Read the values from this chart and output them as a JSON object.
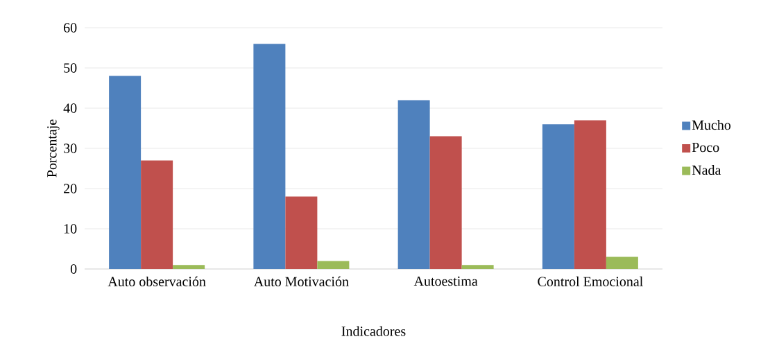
{
  "chart_data": {
    "type": "bar",
    "xlabel": "Indicadores",
    "ylabel": "Porcentaje",
    "categories": [
      "Auto observación",
      "Auto Motivación",
      "Autoestima",
      "Control Emocional"
    ],
    "series": [
      {
        "name": "Mucho",
        "color": "#4f81bd",
        "values": [
          48,
          56,
          42,
          36
        ]
      },
      {
        "name": "Poco",
        "color": "#c0504d",
        "values": [
          27,
          18,
          33,
          37
        ]
      },
      {
        "name": "Nada",
        "color": "#9bbb59",
        "values": [
          1,
          2,
          1,
          3
        ]
      }
    ],
    "ylim": [
      0,
      60
    ],
    "yticks": [
      0,
      10,
      20,
      30,
      40,
      50,
      60
    ],
    "grid": "y",
    "legend": "right"
  }
}
